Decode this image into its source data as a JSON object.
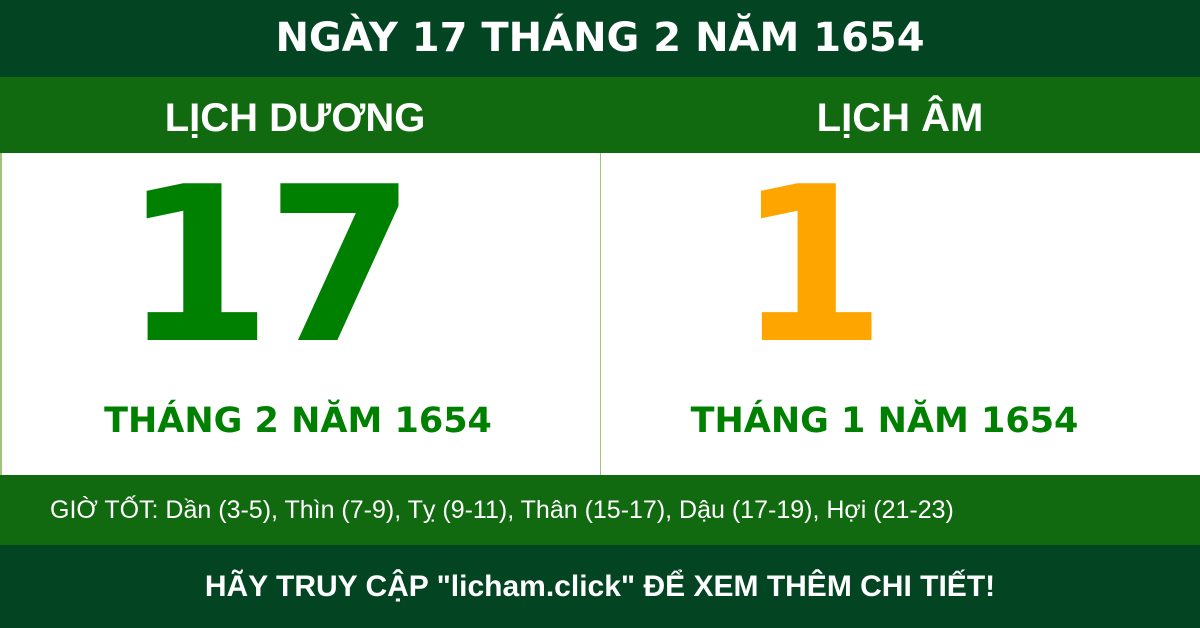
{
  "title": "NGÀY 17 THÁNG 2 NĂM 1654",
  "solar": {
    "heading": "LỊCH DƯƠNG",
    "day": "17",
    "month_year": "THÁNG 2 NĂM 1654"
  },
  "lunar": {
    "heading": "LỊCH ÂM",
    "day": "1",
    "month_year": "THÁNG 1 NĂM 1654"
  },
  "good_hours": "GIỜ TỐT: Dần (3-5), Thìn (7-9), Tỵ (9-11), Thân (15-17), Dậu (17-19), Hợi (21-23)",
  "footer": "HÃY TRUY CẬP \"licham.click\" ĐỂ XEM THÊM CHI TIẾT!",
  "colors": {
    "dark_green": "#034522",
    "green": "#116a10",
    "solar_day": "#008000",
    "lunar_day": "#ffa500"
  }
}
